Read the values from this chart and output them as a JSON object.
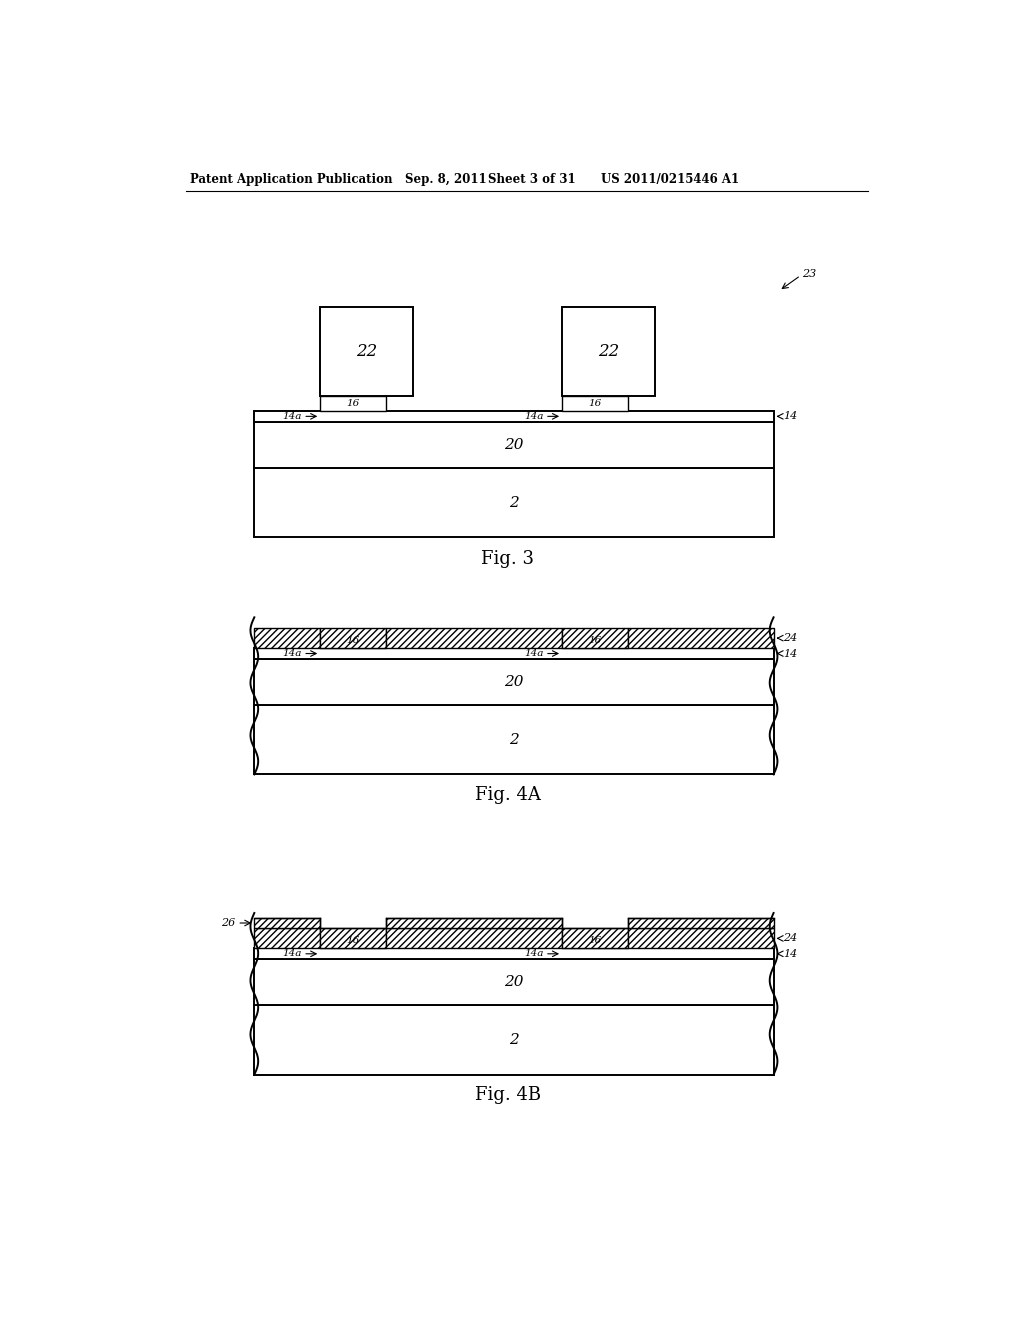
{
  "background_color": "#ffffff",
  "header_text": "Patent Application Publication",
  "header_date": "Sep. 8, 2011",
  "header_sheet": "Sheet 3 of 31",
  "header_patent": "US 2011/0215446 A1",
  "fig3_label": "Fig. 3",
  "fig4a_label": "Fig. 4A",
  "fig4b_label": "Fig. 4B",
  "line_color": "#000000"
}
